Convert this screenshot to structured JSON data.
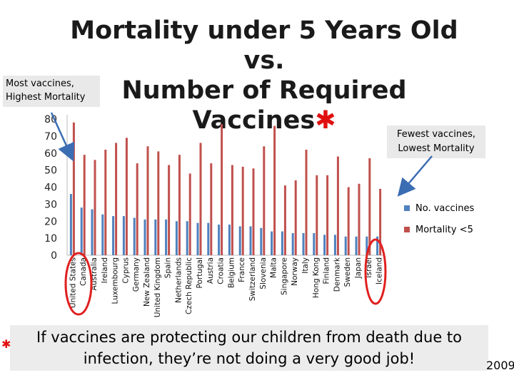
{
  "title": {
    "line1": "Mortality under 5 Years Old vs.",
    "line2": "Number of Required Vaccines",
    "star": "✱"
  },
  "callout_left": "Most vaccines, Highest Mortality",
  "callout_right": "Fewest vaccines, Lowest Mortality",
  "bottom_text": "If vaccines are protecting our children from death due to infection, they’re not doing a very good job!",
  "footnote_star": "✱",
  "year": "2009",
  "colors": {
    "vaccines": "#4f81bd",
    "mortality": "#c0504d",
    "arrow": "#3b6db3",
    "circle": "#e02020"
  },
  "chart_data": {
    "type": "bar",
    "title": "Mortality under 5 Years Old vs. Number of Required Vaccines",
    "xlabel": "",
    "ylabel": "",
    "ylim": [
      0,
      80
    ],
    "yticks": [
      0,
      10,
      20,
      30,
      40,
      50,
      60,
      70,
      80
    ],
    "grid": false,
    "legend": "right",
    "categories": [
      "United States",
      "Canada",
      "Australia",
      "Ireland",
      "Luxembourg",
      "Cyprus",
      "Germany",
      "New Zealand",
      "United Kingdom",
      "Spain",
      "Netherlands",
      "Czech Republic",
      "Portugal",
      "Austria",
      "Croatia",
      "Belgium",
      "France",
      "Switzerland",
      "Slovenia",
      "Malta",
      "Singapore",
      "Norway",
      "Italy",
      "Hong Kong",
      "Finland",
      "Denmark",
      "Sweden",
      "Japan",
      "Israel",
      "Iceland"
    ],
    "series": [
      {
        "name": "No. vaccines",
        "values": [
          36,
          28,
          27,
          24,
          23,
          23,
          22,
          21,
          21,
          21,
          20,
          20,
          19,
          19,
          18,
          18,
          17,
          17,
          16,
          14,
          14,
          13,
          13,
          13,
          12,
          12,
          11,
          11,
          11,
          11
        ]
      },
      {
        "name": "Mortality <5",
        "values": [
          78,
          59,
          56,
          62,
          66,
          69,
          54,
          64,
          61,
          53,
          59,
          48,
          66,
          54,
          77,
          53,
          52,
          51,
          64,
          76,
          41,
          44,
          62,
          47,
          47,
          58,
          40,
          42,
          57,
          39
        ]
      }
    ]
  }
}
